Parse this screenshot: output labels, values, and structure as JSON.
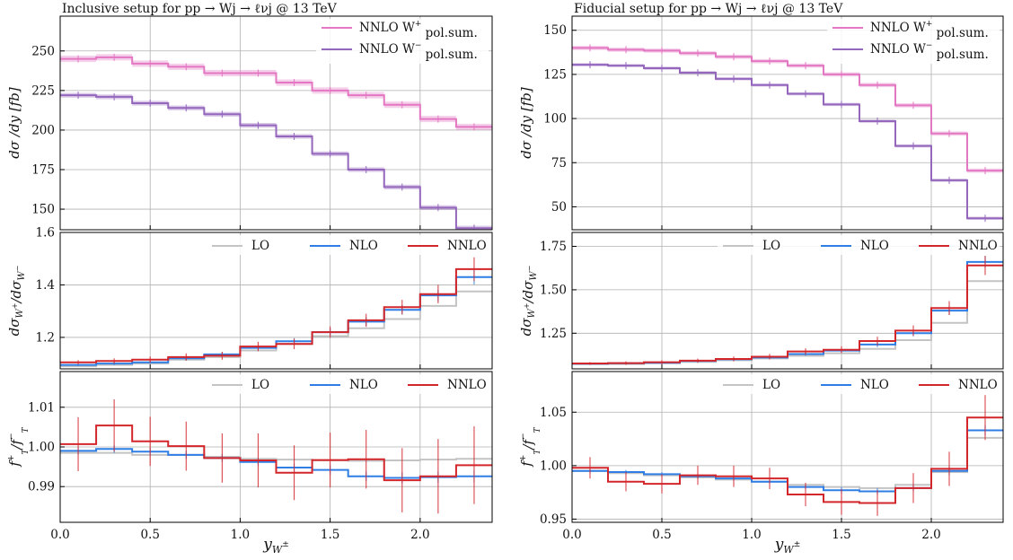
{
  "figure": {
    "x_label": "y_{W^±}",
    "x_ticks": [
      "0.0",
      "0.5",
      "1.0",
      "1.5",
      "2.0"
    ]
  },
  "colors": {
    "lo": "#c4c4c4",
    "nlo": "#2f7ee6",
    "nnlo": "#d2262b",
    "wplus": "#e377c2",
    "wminus": "#9467bd"
  },
  "chart_data": [
    {
      "title": "Inclusive setup for pp → Wj → ℓνj @ 13 TeV",
      "panels": [
        {
          "type": "line",
          "style": "step",
          "ylabel": "dσ / dy [fb]",
          "ylim": [
            137,
            272
          ],
          "yticks": [
            "150",
            "175",
            "200",
            "225",
            "250"
          ],
          "legend": "top-right",
          "x_edges": [
            0.0,
            0.2,
            0.4,
            0.6,
            0.8,
            1.0,
            1.2,
            1.4,
            1.6,
            1.8,
            2.0,
            2.2,
            2.4
          ],
          "series": [
            {
              "name": "NNLO W⁺ pol.sum.",
              "color_key": "wplus",
              "values": [
                245,
                246,
                242,
                240,
                236,
                236,
                230,
                225,
                222,
                216,
                207,
                202
              ],
              "band": 2
            },
            {
              "name": "NNLO W⁻ pol.sum.",
              "color_key": "wminus",
              "values": [
                222,
                221,
                217,
                214,
                210,
                203,
                196,
                185,
                175,
                164,
                151,
                138
              ],
              "band": 1.5
            }
          ]
        },
        {
          "type": "line",
          "style": "step",
          "ylabel": "dσW⁺ / dσW⁻",
          "ylim": [
            1.08,
            1.6
          ],
          "yticks": [
            "1.2",
            "1.4",
            "1.6"
          ],
          "legend": "top-right",
          "x_edges": [
            0.0,
            0.2,
            0.4,
            0.6,
            0.8,
            1.0,
            1.2,
            1.4,
            1.6,
            1.8,
            2.0,
            2.2,
            2.4
          ],
          "series": [
            {
              "name": "LO",
              "color_key": "lo",
              "values": [
                1.09,
                1.095,
                1.1,
                1.115,
                1.125,
                1.15,
                1.175,
                1.205,
                1.235,
                1.27,
                1.32,
                1.375
              ]
            },
            {
              "name": "NLO",
              "color_key": "nlo",
              "values": [
                1.095,
                1.1,
                1.105,
                1.12,
                1.135,
                1.16,
                1.185,
                1.22,
                1.26,
                1.305,
                1.36,
                1.43
              ],
              "err": [
                0.005,
                0.006,
                0.006,
                0.007,
                0.008,
                0.01,
                0.012,
                0.014,
                0.016,
                0.018,
                0.022,
                0.028
              ]
            },
            {
              "name": "NNLO",
              "color_key": "nnlo",
              "values": [
                1.105,
                1.11,
                1.115,
                1.125,
                1.13,
                1.165,
                1.175,
                1.22,
                1.265,
                1.315,
                1.365,
                1.46
              ],
              "err": [
                0.008,
                0.01,
                0.012,
                0.014,
                0.015,
                0.018,
                0.02,
                0.022,
                0.025,
                0.028,
                0.035,
                0.045
              ]
            }
          ]
        },
        {
          "type": "line",
          "style": "step",
          "ylabel": "f⁺_T / f⁻_T",
          "ylim": [
            0.981,
            1.019
          ],
          "yticks": [
            "0.99",
            "1.00",
            "1.01"
          ],
          "legend": "top-right",
          "x_edges": [
            0.0,
            0.2,
            0.4,
            0.6,
            0.8,
            1.0,
            1.2,
            1.4,
            1.6,
            1.8,
            2.0,
            2.2,
            2.4
          ],
          "series": [
            {
              "name": "LO",
              "color_key": "lo",
              "values": [
                0.9985,
                0.9985,
                0.998,
                0.998,
                0.9975,
                0.997,
                0.9968,
                0.9966,
                0.9965,
                0.9966,
                0.9968,
                0.997
              ]
            },
            {
              "name": "NLO",
              "color_key": "nlo",
              "values": [
                0.999,
                0.9995,
                0.9988,
                0.998,
                0.9972,
                0.9962,
                0.9948,
                0.9942,
                0.9926,
                0.9922,
                0.9924,
                0.9926
              ],
              "err": [
                0.001,
                0.001,
                0.001,
                0.001,
                0.001,
                0.001,
                0.001,
                0.0012,
                0.0012,
                0.0014,
                0.0015,
                0.0016
              ]
            },
            {
              "name": "NNLO",
              "color_key": "nnlo",
              "values": [
                1.0007,
                1.0054,
                1.0014,
                1.0002,
                0.9972,
                0.9966,
                0.9935,
                0.9967,
                0.9969,
                0.9916,
                0.9926,
                0.9954
              ],
              "err": [
                0.0068,
                0.0066,
                0.0062,
                0.0062,
                0.0062,
                0.0068,
                0.0069,
                0.0069,
                0.0074,
                0.0081,
                0.0094,
                0.0098
              ]
            }
          ]
        }
      ]
    },
    {
      "title": "Fiducial setup for pp → Wj → ℓνj @ 13 TeV",
      "panels": [
        {
          "type": "line",
          "style": "step",
          "ylabel": "dσ / dy [fb]",
          "ylim": [
            37,
            158
          ],
          "yticks": [
            "50",
            "75",
            "100",
            "125",
            "150"
          ],
          "legend": "top-right",
          "x_edges": [
            0.0,
            0.2,
            0.4,
            0.6,
            0.8,
            1.0,
            1.2,
            1.4,
            1.6,
            1.8,
            2.0,
            2.2,
            2.4
          ],
          "series": [
            {
              "name": "NNLO W⁺ pol.sum.",
              "color_key": "wplus",
              "values": [
                140,
                139,
                138.5,
                137,
                135,
                132.5,
                130,
                125,
                119,
                107.5,
                91.5,
                70.5
              ],
              "band": 1.2
            },
            {
              "name": "NNLO W⁻ pol.sum.",
              "color_key": "wminus",
              "values": [
                130.5,
                130,
                128.5,
                126,
                122.5,
                119,
                114,
                108,
                98.5,
                84.5,
                65,
                43.5
              ],
              "band": 0.9
            }
          ]
        },
        {
          "type": "line",
          "style": "step",
          "ylabel": "dσW⁺ / dσW⁻",
          "ylim": [
            1.045,
            1.83
          ],
          "yticks": [
            "1.25",
            "1.50",
            "1.75"
          ],
          "legend": "top-right",
          "x_edges": [
            0.0,
            0.2,
            0.4,
            0.6,
            0.8,
            1.0,
            1.2,
            1.4,
            1.6,
            1.8,
            2.0,
            2.2,
            2.4
          ],
          "series": [
            {
              "name": "LO",
              "color_key": "lo",
              "values": [
                1.072,
                1.073,
                1.078,
                1.085,
                1.095,
                1.105,
                1.12,
                1.135,
                1.16,
                1.21,
                1.31,
                1.55
              ]
            },
            {
              "name": "NLO",
              "color_key": "nlo",
              "values": [
                1.075,
                1.077,
                1.08,
                1.09,
                1.1,
                1.11,
                1.13,
                1.15,
                1.185,
                1.25,
                1.38,
                1.66
              ],
              "err": [
                0.006,
                0.006,
                0.006,
                0.007,
                0.008,
                0.008,
                0.01,
                0.012,
                0.015,
                0.018,
                0.025,
                0.035
              ]
            },
            {
              "name": "NNLO",
              "color_key": "nnlo",
              "values": [
                1.076,
                1.078,
                1.083,
                1.092,
                1.102,
                1.115,
                1.145,
                1.155,
                1.205,
                1.265,
                1.395,
                1.64
              ],
              "err": [
                0.008,
                0.01,
                0.012,
                0.012,
                0.014,
                0.016,
                0.018,
                0.02,
                0.025,
                0.03,
                0.04,
                0.055
              ]
            }
          ]
        },
        {
          "type": "line",
          "style": "step",
          "ylabel": "f⁺_T / f⁻_T",
          "ylim": [
            0.947,
            1.088
          ],
          "yticks": [
            "0.95",
            "1.00",
            "1.05"
          ],
          "legend": "top-right",
          "x_edges": [
            0.0,
            0.2,
            0.4,
            0.6,
            0.8,
            1.0,
            1.2,
            1.4,
            1.6,
            1.8,
            2.0,
            2.2,
            2.4
          ],
          "series": [
            {
              "name": "LO",
              "color_key": "lo",
              "values": [
                0.995,
                0.993,
                0.991,
                0.989,
                0.987,
                0.985,
                0.982,
                0.98,
                0.979,
                0.982,
                0.994,
                1.026
              ]
            },
            {
              "name": "NLO",
              "color_key": "nlo",
              "values": [
                0.995,
                0.994,
                0.992,
                0.99,
                0.988,
                0.985,
                0.98,
                0.977,
                0.976,
                0.979,
                0.995,
                1.033
              ],
              "err": [
                0.002,
                0.002,
                0.002,
                0.002,
                0.002,
                0.002,
                0.002,
                0.003,
                0.003,
                0.003,
                0.004,
                0.005
              ]
            },
            {
              "name": "NNLO",
              "color_key": "nnlo",
              "values": [
                0.998,
                0.985,
                0.983,
                0.991,
                0.99,
                0.988,
                0.973,
                0.966,
                0.965,
                0.979,
                0.997,
                1.045
              ],
              "err": [
                0.01,
                0.009,
                0.009,
                0.009,
                0.01,
                0.01,
                0.011,
                0.012,
                0.012,
                0.014,
                0.016,
                0.021
              ]
            }
          ]
        }
      ]
    }
  ]
}
